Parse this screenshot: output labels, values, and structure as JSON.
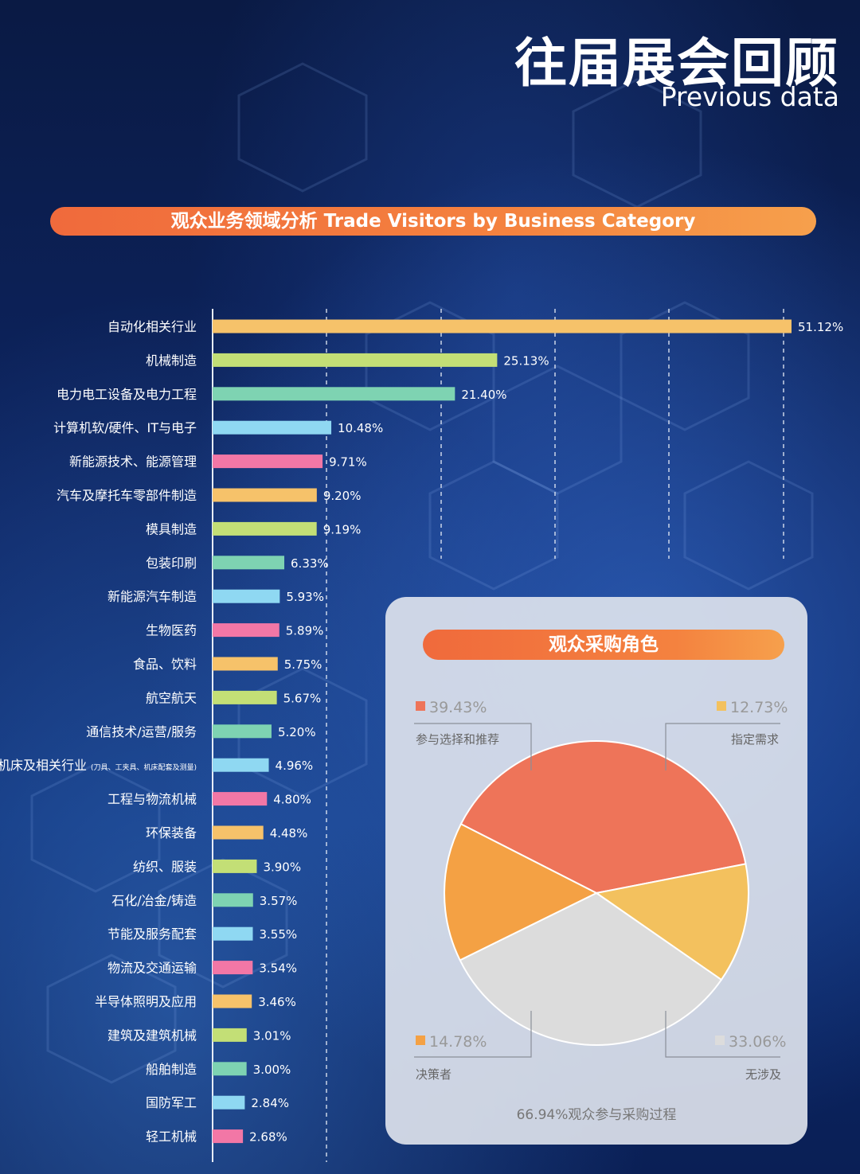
{
  "header": {
    "title_cn": "往届展会回顾",
    "title_en": "Previous data"
  },
  "bar_section": {
    "title": "观众业务领域分析 Trade Visitors by Business Category"
  },
  "pie_section": {
    "title": "观众采购角色",
    "note": "66.94%观众参与采购过程"
  },
  "colors": {
    "banner": "#f06a3c",
    "cycle": [
      "#f6c26a",
      "#c3df76",
      "#7ed3b2",
      "#8fd8f2",
      "#f277a6"
    ],
    "pie": [
      "#ee7459",
      "#f3c15e",
      "#dcdcdc",
      "#f4a144"
    ]
  },
  "chart_data": [
    {
      "type": "bar",
      "orientation": "horizontal",
      "title": "观众业务领域分析 Trade Visitors by Business Category",
      "categories": [
        "自动化相关行业",
        "机械制造",
        "电力电工设备及电力工程",
        "计算机软/硬件、IT与电子",
        "新能源技术、能源管理",
        "汽车及摩托车零部件制造",
        "模具制造",
        "包装印刷",
        "新能源汽车制造",
        "生物医药",
        "食品、饮料",
        "航空航天",
        "通信技术/运营/服务",
        "机床及相关行业",
        "工程与物流机械",
        "环保装备",
        "纺织、服装",
        "石化/冶金/铸造",
        "节能及服务配套",
        "物流及交通运输",
        "半导体照明及应用",
        "建筑及建筑机械",
        "船舶制造",
        "国防军工",
        "轻工机械"
      ],
      "category_note": "(刀具、工夹具、机床配套及测量)",
      "values": [
        51.12,
        25.13,
        21.4,
        10.48,
        9.71,
        9.2,
        9.19,
        6.33,
        5.93,
        5.89,
        5.75,
        5.67,
        5.2,
        4.96,
        4.8,
        4.48,
        3.9,
        3.57,
        3.55,
        3.54,
        3.46,
        3.01,
        3.0,
        2.84,
        2.68
      ],
      "labels": [
        "51.12%",
        "25.13%",
        "21.40%",
        "10.48%",
        "9.71%",
        "9.20%",
        "9.19%",
        "6.33%",
        "5.93%",
        "5.89%",
        "5.75%",
        "5.67%",
        "5.20%",
        "4.96%",
        "4.80%",
        "4.48%",
        "3.90%",
        "3.57%",
        "3.55%",
        "3.54%",
        "3.46%",
        "3.01%",
        "3.00%",
        "2.84%",
        "2.68%"
      ],
      "xlim": [
        0,
        51.12
      ],
      "grid": "dashed vertical"
    },
    {
      "type": "pie",
      "title": "观众采购角色",
      "slices": [
        {
          "label": "参与选择和推荐",
          "value": 39.43,
          "pct_label": "39.43%"
        },
        {
          "label": "指定需求",
          "value": 12.73,
          "pct_label": "12.73%"
        },
        {
          "label": "无涉及",
          "value": 33.06,
          "pct_label": "33.06%"
        },
        {
          "label": "决策者",
          "value": 14.78,
          "pct_label": "14.78%"
        }
      ],
      "annotation": "66.94%观众参与采购过程"
    }
  ]
}
